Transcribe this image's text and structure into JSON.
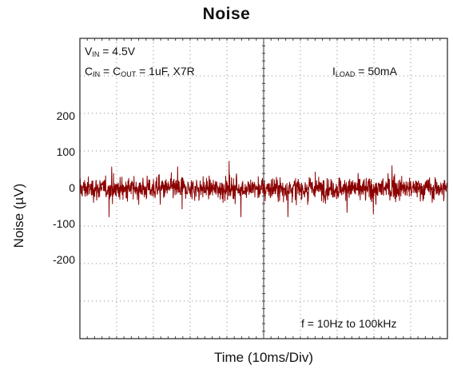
{
  "chart_data": {
    "type": "line",
    "title": "Noise",
    "xlabel": "Time (10ms/Div)",
    "ylabel": "Noise (µV)",
    "yticks": [
      "200",
      "100",
      "0",
      "-100",
      "-200"
    ],
    "ytick_values": [
      200,
      100,
      0,
      -100,
      -200
    ],
    "ylim": [
      -420,
      420
    ],
    "x_divisions": 10,
    "y_divisions": 8,
    "grid": "dotted",
    "series": [
      {
        "color": "#8b0000",
        "mean": 0,
        "typical_peak": 40,
        "max_peak": 115,
        "min_peak": -80,
        "points": 1400
      }
    ],
    "annotations": {
      "vin": {
        "main": "V",
        "sub": "IN",
        "rest": " = 4.5V"
      },
      "cap": {
        "c1": "C",
        "sub1": "IN",
        "mid": " = C",
        "sub2": "OUT",
        "rest": " = 1uF, X7R"
      },
      "iload": {
        "main": "I",
        "sub": "LOAD",
        "rest": " = 50mA"
      },
      "freq": "f = 10Hz to 100kHz"
    }
  }
}
